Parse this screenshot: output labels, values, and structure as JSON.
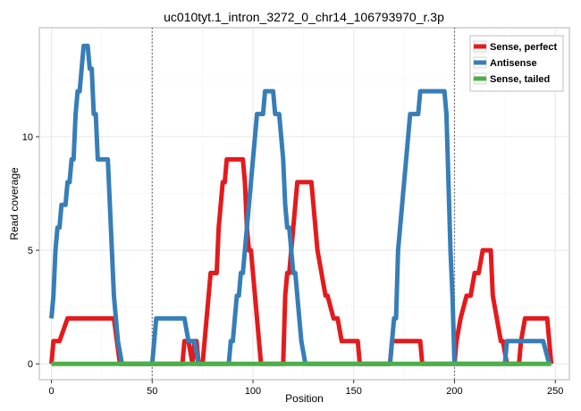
{
  "chart_data": {
    "type": "line",
    "title": "uc010tyt.1_intron_3272_0_chr14_106793970_r.3p",
    "xlabel": "Position",
    "ylabel": "Read coverage",
    "xlim": [
      -6,
      257
    ],
    "ylim": [
      -0.7,
      14.8
    ],
    "x_ticks": [
      0,
      50,
      100,
      150,
      200,
      250
    ],
    "y_ticks": [
      0,
      5,
      10
    ],
    "vlines": [
      50,
      200
    ],
    "grid": true,
    "legend_position": "top-right",
    "series": [
      {
        "name": "Sense, perfect",
        "color": "#e41a1c",
        "points": [
          [
            0,
            0
          ],
          [
            1,
            1
          ],
          [
            4,
            1
          ],
          [
            8,
            2
          ],
          [
            31,
            2
          ],
          [
            34,
            0
          ],
          [
            65,
            0
          ],
          [
            66,
            1
          ],
          [
            68,
            1
          ],
          [
            70,
            0
          ],
          [
            71,
            1
          ],
          [
            72,
            1
          ],
          [
            73,
            0
          ],
          [
            74,
            0
          ],
          [
            75,
            0
          ],
          [
            76,
            1
          ],
          [
            77,
            2
          ],
          [
            78,
            3
          ],
          [
            79,
            4
          ],
          [
            82,
            4
          ],
          [
            83,
            6
          ],
          [
            84,
            7
          ],
          [
            85,
            8
          ],
          [
            86,
            8
          ],
          [
            87,
            9
          ],
          [
            94,
            9
          ],
          [
            95,
            9
          ],
          [
            96,
            8
          ],
          [
            97,
            6
          ],
          [
            98,
            5
          ],
          [
            99,
            5
          ],
          [
            100,
            4
          ],
          [
            101,
            3
          ],
          [
            102,
            2
          ],
          [
            103,
            1
          ],
          [
            104,
            0
          ],
          [
            115,
            0
          ],
          [
            116,
            3
          ],
          [
            117,
            4
          ],
          [
            118,
            4
          ],
          [
            119,
            5
          ],
          [
            120,
            6
          ],
          [
            121,
            7
          ],
          [
            122,
            8
          ],
          [
            129,
            8
          ],
          [
            131,
            6
          ],
          [
            132,
            5
          ],
          [
            134,
            4
          ],
          [
            136,
            3
          ],
          [
            137,
            3
          ],
          [
            140,
            2
          ],
          [
            142,
            2
          ],
          [
            144,
            1
          ],
          [
            152,
            1
          ],
          [
            153,
            0
          ],
          [
            168,
            0
          ],
          [
            169,
            1
          ],
          [
            183,
            1
          ],
          [
            184,
            0
          ],
          [
            200,
            0
          ],
          [
            201,
            1
          ],
          [
            203,
            2
          ],
          [
            206,
            3
          ],
          [
            208,
            3
          ],
          [
            210,
            4
          ],
          [
            212,
            4
          ],
          [
            214,
            5
          ],
          [
            218,
            5
          ],
          [
            219,
            3
          ],
          [
            221,
            2
          ],
          [
            223,
            1
          ],
          [
            224,
            1
          ],
          [
            226,
            0
          ],
          [
            232,
            0
          ],
          [
            233,
            1
          ],
          [
            235,
            2
          ],
          [
            246,
            2
          ],
          [
            248,
            0
          ]
        ]
      },
      {
        "name": "Antisense",
        "color": "#377eb8",
        "points": [
          [
            0,
            2
          ],
          [
            1,
            3
          ],
          [
            2,
            5
          ],
          [
            3,
            6
          ],
          [
            4,
            6
          ],
          [
            5,
            7
          ],
          [
            7,
            7
          ],
          [
            8,
            8
          ],
          [
            9,
            8
          ],
          [
            10,
            9
          ],
          [
            11,
            9
          ],
          [
            12,
            11
          ],
          [
            13,
            12
          ],
          [
            14,
            12
          ],
          [
            15,
            13
          ],
          [
            16,
            14
          ],
          [
            18,
            14
          ],
          [
            19,
            13
          ],
          [
            20,
            13
          ],
          [
            21,
            11
          ],
          [
            22,
            11
          ],
          [
            23,
            9
          ],
          [
            28,
            9
          ],
          [
            29,
            7
          ],
          [
            30,
            5
          ],
          [
            31,
            3
          ],
          [
            33,
            1
          ],
          [
            35,
            0
          ],
          [
            50,
            0
          ],
          [
            51,
            1
          ],
          [
            52,
            2
          ],
          [
            66,
            2
          ],
          [
            68,
            1
          ],
          [
            71,
            1
          ],
          [
            73,
            0
          ],
          [
            88,
            0
          ],
          [
            89,
            1
          ],
          [
            90,
            1
          ],
          [
            91,
            2
          ],
          [
            92,
            3
          ],
          [
            93,
            3
          ],
          [
            94,
            4
          ],
          [
            95,
            4
          ],
          [
            96,
            5
          ],
          [
            97,
            6
          ],
          [
            98,
            7
          ],
          [
            99,
            8
          ],
          [
            100,
            9
          ],
          [
            101,
            10
          ],
          [
            102,
            11
          ],
          [
            105,
            11
          ],
          [
            106,
            12
          ],
          [
            110,
            12
          ],
          [
            111,
            11
          ],
          [
            113,
            11
          ],
          [
            114,
            10
          ],
          [
            115,
            9
          ],
          [
            116,
            7
          ],
          [
            117,
            6
          ],
          [
            118,
            6
          ],
          [
            120,
            4
          ],
          [
            121,
            4
          ],
          [
            122,
            3
          ],
          [
            123,
            2
          ],
          [
            124,
            1
          ],
          [
            126,
            0
          ],
          [
            168,
            0
          ],
          [
            169,
            1
          ],
          [
            170,
            2
          ],
          [
            171,
            2
          ],
          [
            172,
            5
          ],
          [
            173,
            6
          ],
          [
            174,
            7
          ],
          [
            175,
            8
          ],
          [
            176,
            9
          ],
          [
            177,
            10
          ],
          [
            178,
            11
          ],
          [
            182,
            11
          ],
          [
            183,
            12
          ],
          [
            195,
            12
          ],
          [
            196,
            11
          ],
          [
            197,
            8
          ],
          [
            198,
            5
          ],
          [
            199,
            3
          ],
          [
            200,
            0
          ],
          [
            225,
            0
          ],
          [
            226,
            1
          ],
          [
            244,
            1
          ],
          [
            247,
            0
          ]
        ]
      },
      {
        "name": "Sense, tailed",
        "color": "#4daf4a",
        "points": [
          [
            0,
            0
          ],
          [
            248,
            0
          ]
        ]
      }
    ]
  }
}
